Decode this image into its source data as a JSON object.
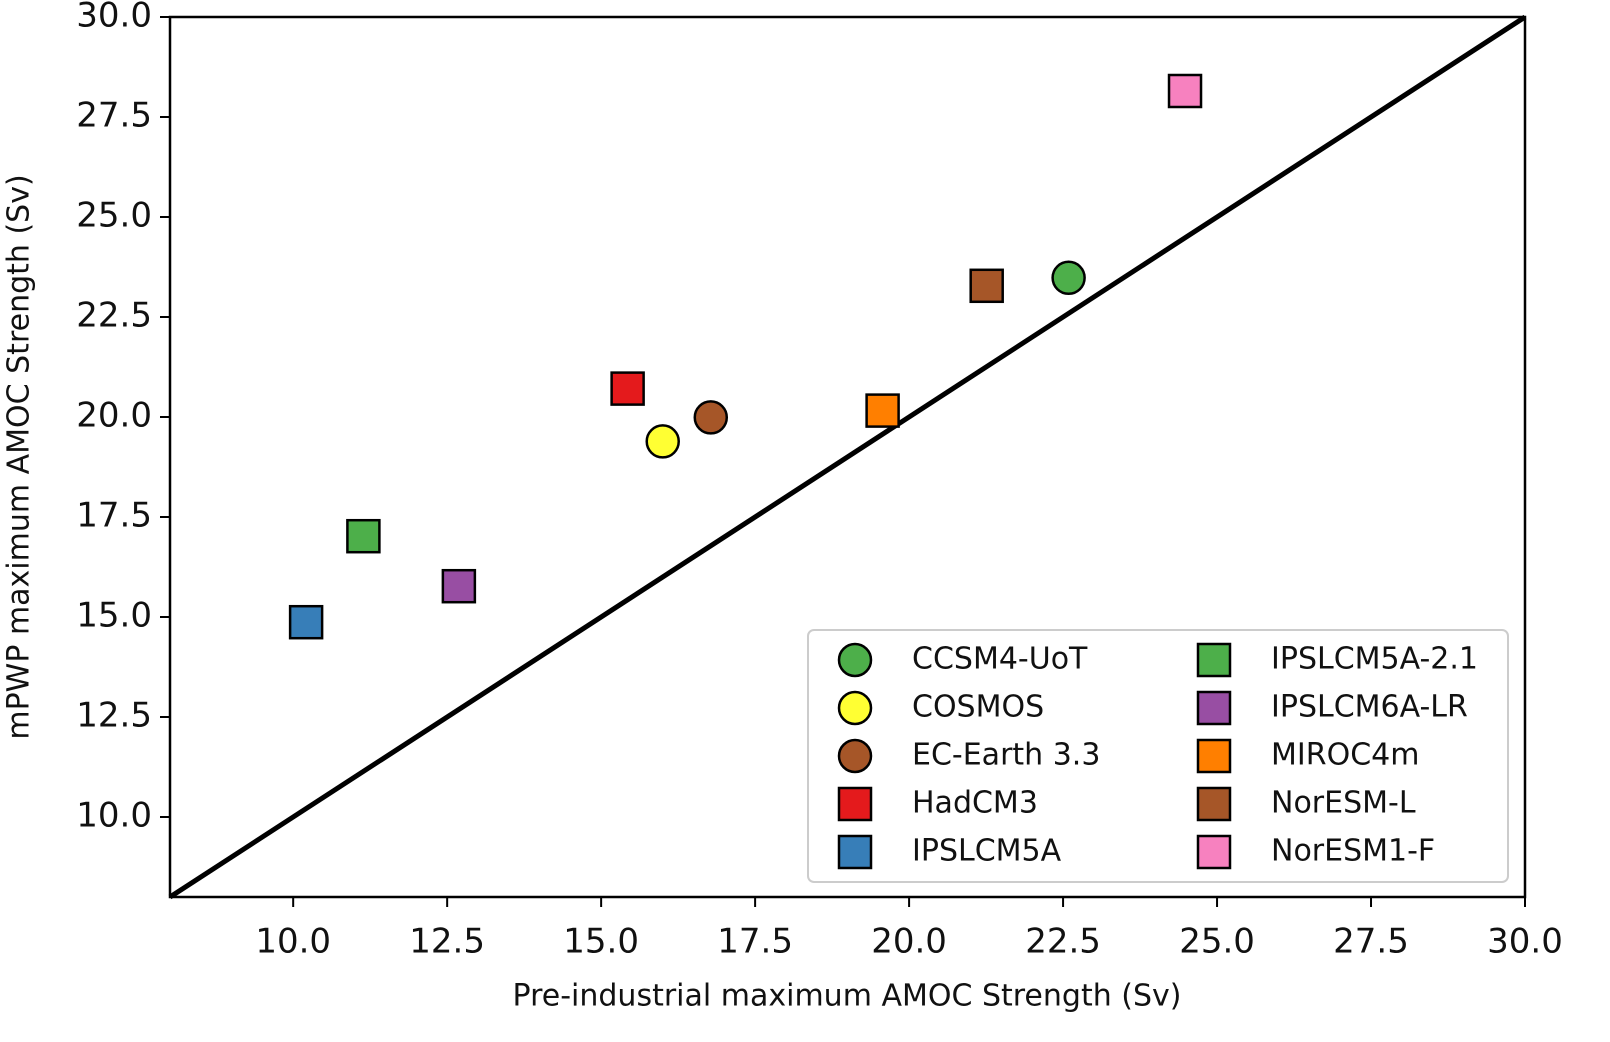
{
  "chart_data": {
    "type": "scatter",
    "xlabel": "Pre-industrial maximum AMOC Strength (Sv)",
    "ylabel": "mPWP maximum AMOC Strength (Sv)",
    "xlim": [
      8,
      30
    ],
    "ylim": [
      8,
      30
    ],
    "xticks": [
      {
        "value": 10,
        "label": "10.0"
      },
      12.5,
      {
        "value": 15,
        "label": "15.0"
      },
      17.5,
      {
        "value": 20,
        "label": "20.0"
      },
      22.5,
      {
        "value": 25,
        "label": "25.0"
      },
      27.5,
      {
        "value": 30,
        "label": "30.0"
      }
    ],
    "yticks": [
      {
        "value": 10,
        "label": "10.0"
      },
      12.5,
      {
        "value": 15,
        "label": "15.0"
      },
      17.5,
      {
        "value": 20,
        "label": "20.0"
      },
      22.5,
      {
        "value": 25,
        "label": "25.0"
      },
      27.5,
      {
        "value": 30,
        "label": "30.0"
      }
    ],
    "identity_line": true,
    "legend": "lower right",
    "legend_columns": 2,
    "series": [
      {
        "name": "CCSM4-UoT",
        "color": "#4daf4a",
        "marker": "circle",
        "x": [
          22.59
        ],
        "values": [
          23.48
        ]
      },
      {
        "name": "COSMOS",
        "color": "#ffff33",
        "marker": "circle",
        "x": [
          16.0
        ],
        "values": [
          19.39
        ]
      },
      {
        "name": "EC-Earth 3.3",
        "color": "#a65628",
        "marker": "circle",
        "x": [
          16.78
        ],
        "values": [
          19.99
        ]
      },
      {
        "name": "HadCM3",
        "color": "#e41a1c",
        "marker": "square",
        "x": [
          15.43
        ],
        "values": [
          20.71
        ]
      },
      {
        "name": "IPSLCM5A",
        "color": "#377eb8",
        "marker": "square",
        "x": [
          10.21
        ],
        "values": [
          14.87
        ]
      },
      {
        "name": "IPSLCM5A-2.1",
        "color": "#4daf4a",
        "marker": "square",
        "x": [
          11.14
        ],
        "values": [
          17.02
        ]
      },
      {
        "name": "IPSLCM6A-LR",
        "color": "#984ea3",
        "marker": "square",
        "x": [
          12.69
        ],
        "values": [
          15.77
        ]
      },
      {
        "name": "MIROC4m",
        "color": "#ff7f00",
        "marker": "square",
        "x": [
          19.57
        ],
        "values": [
          20.16
        ]
      },
      {
        "name": "NorESM-L",
        "color": "#a65628",
        "marker": "square",
        "x": [
          21.26
        ],
        "values": [
          23.28
        ]
      },
      {
        "name": "NorESM1-F",
        "color": "#f781bf",
        "marker": "square",
        "x": [
          24.48
        ],
        "values": [
          28.15
        ]
      }
    ]
  }
}
